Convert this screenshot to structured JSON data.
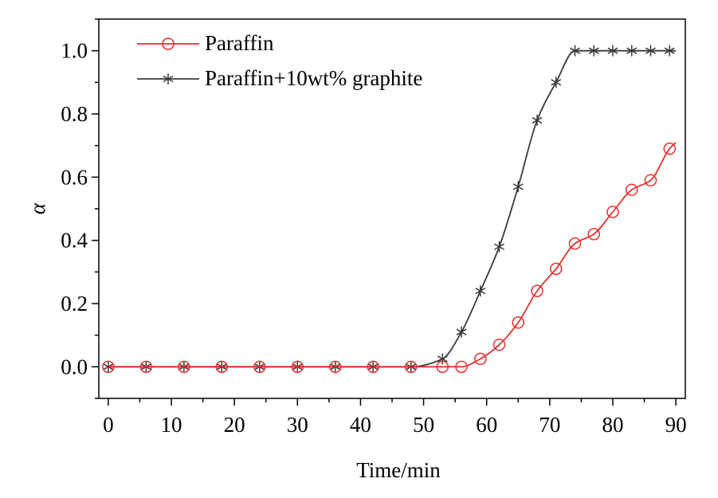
{
  "chart_data": {
    "type": "line",
    "title": "",
    "xlabel": "Time/min",
    "ylabel": "α",
    "xlim": [
      -1.5,
      91.5
    ],
    "ylim": [
      -0.1,
      1.1
    ],
    "xticks": [
      0,
      10,
      20,
      30,
      40,
      50,
      60,
      70,
      80,
      90
    ],
    "xtick_labels": [
      "0",
      "10",
      "20",
      "30",
      "40",
      "50",
      "60",
      "70",
      "80",
      "90"
    ],
    "yticks": [
      0.0,
      0.2,
      0.4,
      0.6,
      0.8,
      1.0
    ],
    "ytick_labels": [
      "0.0",
      "0.2",
      "0.4",
      "0.6",
      "0.8",
      "1.0"
    ],
    "grid": false,
    "legend_position": "top-left",
    "series": [
      {
        "name": "Paraffin",
        "color": "#e8302e",
        "marker": "circle",
        "x": [
          0,
          6,
          12,
          18,
          24,
          30,
          36,
          42,
          48,
          53,
          56,
          59,
          62,
          65,
          68,
          71,
          74,
          77,
          80,
          83,
          86,
          89
        ],
        "y": [
          0,
          0,
          0,
          0,
          0,
          0,
          0,
          0,
          0,
          0,
          0,
          0.025,
          0.07,
          0.14,
          0.24,
          0.31,
          0.39,
          0.42,
          0.49,
          0.56,
          0.59,
          0.69
        ]
      },
      {
        "name": "Paraffin+10wt% graphite",
        "color": "#3a3a3a",
        "marker": "asterisk",
        "x": [
          0,
          6,
          12,
          18,
          24,
          30,
          36,
          42,
          48,
          53,
          56,
          59,
          62,
          65,
          68,
          71,
          74,
          77,
          80,
          83,
          86,
          89
        ],
        "y": [
          0,
          0,
          0,
          0,
          0,
          0,
          0,
          0,
          0,
          0.025,
          0.11,
          0.24,
          0.38,
          0.57,
          0.78,
          0.9,
          1.0,
          1.0,
          1.0,
          1.0,
          1.0,
          1.0
        ]
      }
    ]
  }
}
